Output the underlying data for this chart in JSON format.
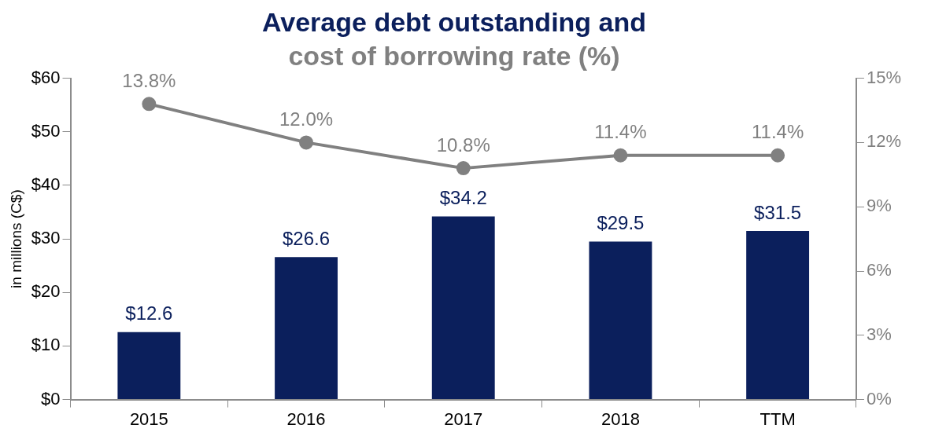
{
  "chart_data": {
    "type": "bar",
    "title": "Average debt outstanding and",
    "subtitle": "cost of borrowing rate (%)",
    "ylabel": "in millions (C$)",
    "categories": [
      "2015",
      "2016",
      "2017",
      "2018",
      "TTM"
    ],
    "series": [
      {
        "color": "#0b1f5c",
        "values": [
          12.6,
          26.6,
          34.2,
          29.5,
          31.5
        ],
        "value_labels": [
          "$12.6",
          "$26.6",
          "$34.2",
          "$29.5",
          "$31.5"
        ]
      },
      {
        "type": "line",
        "axis": "y2",
        "color": "#808080",
        "values": [
          13.8,
          12.0,
          10.8,
          11.4,
          11.4
        ],
        "value_labels": [
          "13.8%",
          "12.0%",
          "10.8%",
          "11.4%",
          "11.4%"
        ],
        "marker": "circle",
        "line_style": "solid"
      }
    ],
    "ylim": [
      0,
      60
    ],
    "yticks": [
      {
        "value": 0,
        "label": "$0"
      },
      {
        "value": 10,
        "label": "$10"
      },
      {
        "value": 20,
        "label": "$20"
      },
      {
        "value": 30,
        "label": "$30"
      },
      {
        "value": 40,
        "label": "$40"
      },
      {
        "value": 50,
        "label": "$50"
      },
      {
        "value": 60,
        "label": "$60"
      }
    ],
    "y2lim": [
      0,
      15
    ],
    "y2ticks": [
      {
        "value": 0,
        "label": "0%"
      },
      {
        "value": 3,
        "label": "3%"
      },
      {
        "value": 6,
        "label": "6%"
      },
      {
        "value": 9,
        "label": "9%"
      },
      {
        "value": 12,
        "label": "12%"
      },
      {
        "value": 15,
        "label": "15%"
      }
    ],
    "grid": false,
    "legend": false
  }
}
